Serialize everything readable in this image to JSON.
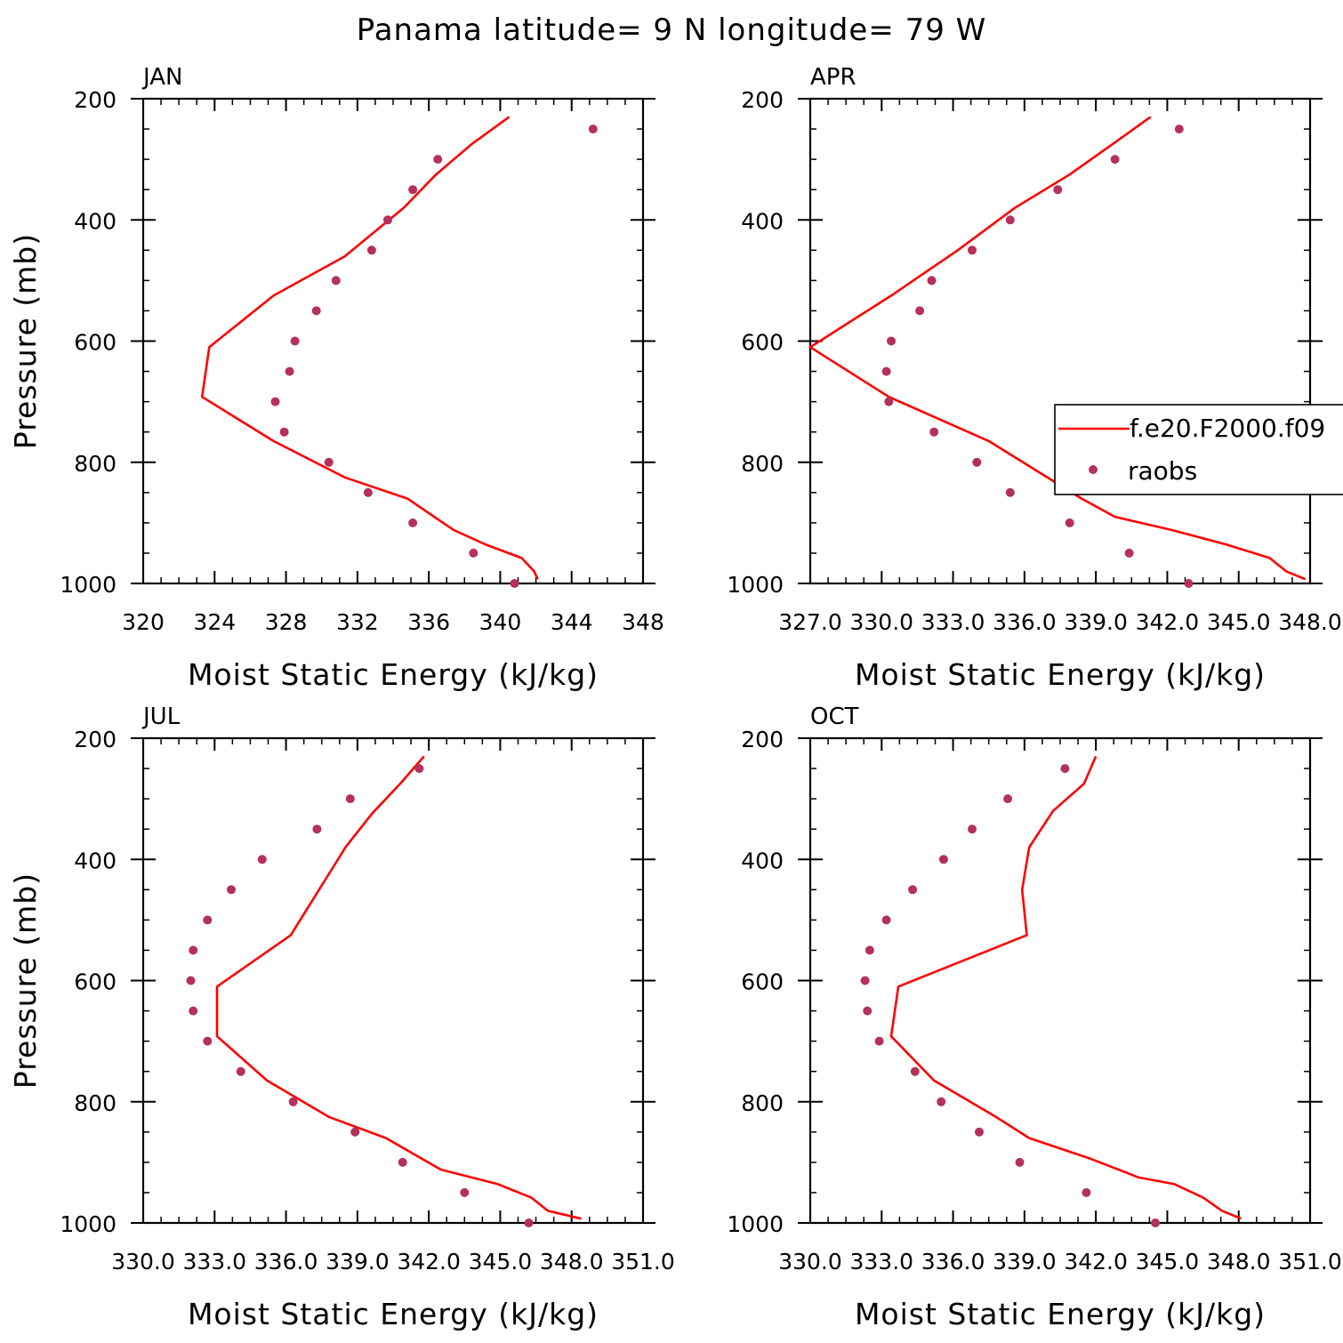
{
  "figure": {
    "title": "Panama  latitude= 9 N longitude= 79 W"
  },
  "colors": {
    "model_line": "#ff0000",
    "raobs_marker": "#b5305a",
    "axis": "#000000"
  },
  "legend": {
    "entries": [
      {
        "label": "f.e20.F2000.f09",
        "marker": "line"
      },
      {
        "label": "raobs",
        "marker": "dot"
      }
    ]
  },
  "chart_data": [
    {
      "type": "line",
      "panel": "JAN",
      "xlabel": "Moist Static Energy (kJ/kg)",
      "ylabel": "Pressure (mb)",
      "xlim": [
        320,
        348
      ],
      "ylim": [
        1000,
        200
      ],
      "x_ticks": [
        320,
        324,
        328,
        332,
        336,
        340,
        344,
        348
      ],
      "x_tick_labels": [
        "320",
        "324",
        "328",
        "332",
        "336",
        "340",
        "344",
        "348"
      ],
      "y_ticks": [
        200,
        400,
        600,
        800,
        1000
      ],
      "y_tick_labels": [
        "200",
        "400",
        "600",
        "800",
        "1000"
      ],
      "series": [
        {
          "name": "f.e20.F2000.f09",
          "style": "line",
          "points": [
            [
              340.5,
              230
            ],
            [
              338.4,
              275
            ],
            [
              336.4,
              325
            ],
            [
              334.6,
              380
            ],
            [
              331.3,
              460
            ],
            [
              327.3,
              525
            ],
            [
              323.7,
              610
            ],
            [
              323.3,
              692
            ],
            [
              327.3,
              765
            ],
            [
              331.3,
              825
            ],
            [
              334.8,
              860
            ],
            [
              336.3,
              890
            ],
            [
              337.4,
              912
            ],
            [
              339.2,
              936
            ],
            [
              341.2,
              958
            ],
            [
              341.9,
              980
            ],
            [
              342.1,
              993
            ]
          ]
        },
        {
          "name": "raobs",
          "style": "markers",
          "points": [
            [
              345.2,
              250
            ],
            [
              336.5,
              300
            ],
            [
              335.1,
              350
            ],
            [
              333.7,
              400
            ],
            [
              332.8,
              450
            ],
            [
              330.8,
              500
            ],
            [
              329.7,
              550
            ],
            [
              328.5,
              600
            ],
            [
              328.2,
              650
            ],
            [
              327.4,
              700
            ],
            [
              327.9,
              750
            ],
            [
              330.4,
              800
            ],
            [
              332.6,
              850
            ],
            [
              335.1,
              900
            ],
            [
              338.5,
              950
            ],
            [
              340.8,
              1000
            ]
          ]
        }
      ]
    },
    {
      "type": "line",
      "panel": "APR",
      "xlabel": "Moist Static Energy (kJ/kg)",
      "ylabel": "",
      "xlim": [
        327.0,
        348.0
      ],
      "ylim": [
        1000,
        200
      ],
      "x_ticks": [
        327,
        330,
        333,
        336,
        339,
        342,
        345,
        348
      ],
      "x_tick_labels": [
        "327.0",
        "330.0",
        "333.0",
        "336.0",
        "339.0",
        "342.0",
        "345.0",
        "348.0"
      ],
      "y_ticks": [
        200,
        400,
        600,
        800,
        1000
      ],
      "y_tick_labels": [
        "200",
        "400",
        "600",
        "800",
        "1000"
      ],
      "series": [
        {
          "name": "f.e20.F2000.f09",
          "style": "line",
          "points": [
            [
              341.3,
              230
            ],
            [
              339.7,
              275
            ],
            [
              337.9,
              325
            ],
            [
              335.6,
              380
            ],
            [
              333.2,
              450
            ],
            [
              330.4,
              525
            ],
            [
              327.0,
              610
            ],
            [
              330.3,
              692
            ],
            [
              334.5,
              765
            ],
            [
              338.4,
              860
            ],
            [
              339.8,
              890
            ],
            [
              342.2,
              912
            ],
            [
              344.5,
              936
            ],
            [
              346.3,
              958
            ],
            [
              347.0,
              980
            ],
            [
              347.8,
              993
            ]
          ]
        },
        {
          "name": "raobs",
          "style": "markers",
          "points": [
            [
              342.5,
              250
            ],
            [
              339.8,
              300
            ],
            [
              337.4,
              350
            ],
            [
              335.4,
              400
            ],
            [
              333.8,
              450
            ],
            [
              332.1,
              500
            ],
            [
              331.6,
              550
            ],
            [
              330.4,
              600
            ],
            [
              330.2,
              650
            ],
            [
              330.3,
              700
            ],
            [
              332.2,
              750
            ],
            [
              334.0,
              800
            ],
            [
              335.4,
              850
            ],
            [
              337.9,
              900
            ],
            [
              340.4,
              950
            ],
            [
              342.9,
              1000
            ]
          ]
        }
      ]
    },
    {
      "type": "line",
      "panel": "JUL",
      "xlabel": "Moist Static Energy (kJ/kg)",
      "ylabel": "Pressure (mb)",
      "xlim": [
        330.0,
        351.0
      ],
      "ylim": [
        1000,
        200
      ],
      "x_ticks": [
        330,
        333,
        336,
        339,
        342,
        345,
        348,
        351
      ],
      "x_tick_labels": [
        "330.0",
        "333.0",
        "336.0",
        "339.0",
        "342.0",
        "345.0",
        "348.0",
        "351.0"
      ],
      "y_ticks": [
        200,
        400,
        600,
        800,
        1000
      ],
      "y_tick_labels": [
        "200",
        "400",
        "600",
        "800",
        "1000"
      ],
      "series": [
        {
          "name": "f.e20.F2000.f09",
          "style": "line",
          "points": [
            [
              341.8,
              230
            ],
            [
              340.8,
              275
            ],
            [
              339.6,
              325
            ],
            [
              338.5,
              380
            ],
            [
              336.2,
              525
            ],
            [
              333.1,
              610
            ],
            [
              333.1,
              692
            ],
            [
              335.2,
              765
            ],
            [
              337.8,
              825
            ],
            [
              340.2,
              860
            ],
            [
              342.5,
              912
            ],
            [
              344.9,
              936
            ],
            [
              346.3,
              958
            ],
            [
              347.0,
              980
            ],
            [
              348.4,
              993
            ]
          ]
        },
        {
          "name": "raobs",
          "style": "markers",
          "points": [
            [
              341.6,
              250
            ],
            [
              338.7,
              300
            ],
            [
              337.3,
              350
            ],
            [
              335.0,
              400
            ],
            [
              333.7,
              450
            ],
            [
              332.7,
              500
            ],
            [
              332.1,
              550
            ],
            [
              332.0,
              600
            ],
            [
              332.1,
              650
            ],
            [
              332.7,
              700
            ],
            [
              334.1,
              750
            ],
            [
              336.3,
              800
            ],
            [
              338.9,
              850
            ],
            [
              340.9,
              900
            ],
            [
              343.5,
              950
            ],
            [
              346.2,
              1000
            ]
          ]
        }
      ]
    },
    {
      "type": "line",
      "panel": "OCT",
      "xlabel": "Moist Static Energy (kJ/kg)",
      "ylabel": "",
      "xlim": [
        330.0,
        351.0
      ],
      "ylim": [
        1000,
        200
      ],
      "x_ticks": [
        330,
        333,
        336,
        339,
        342,
        345,
        348,
        351
      ],
      "x_tick_labels": [
        "330.0",
        "333.0",
        "336.0",
        "339.0",
        "342.0",
        "345.0",
        "348.0",
        "351.0"
      ],
      "y_ticks": [
        200,
        400,
        600,
        800,
        1000
      ],
      "y_tick_labels": [
        "200",
        "400",
        "600",
        "800",
        "1000"
      ],
      "series": [
        {
          "name": "f.e20.F2000.f09",
          "style": "line",
          "points": [
            [
              342.0,
              230
            ],
            [
              341.5,
              275
            ],
            [
              340.2,
              320
            ],
            [
              339.2,
              380
            ],
            [
              338.9,
              450
            ],
            [
              339.1,
              525
            ],
            [
              333.7,
              610
            ],
            [
              333.4,
              692
            ],
            [
              335.2,
              765
            ],
            [
              337.8,
              825
            ],
            [
              339.2,
              860
            ],
            [
              341.7,
              893
            ],
            [
              343.8,
              925
            ],
            [
              345.3,
              936
            ],
            [
              346.5,
              958
            ],
            [
              347.3,
              980
            ],
            [
              348.1,
              993
            ]
          ]
        },
        {
          "name": "raobs",
          "style": "markers",
          "points": [
            [
              340.7,
              250
            ],
            [
              338.3,
              300
            ],
            [
              336.8,
              350
            ],
            [
              335.6,
              400
            ],
            [
              334.3,
              450
            ],
            [
              333.2,
              500
            ],
            [
              332.5,
              550
            ],
            [
              332.3,
              600
            ],
            [
              332.4,
              650
            ],
            [
              332.9,
              700
            ],
            [
              334.4,
              750
            ],
            [
              335.5,
              800
            ],
            [
              337.1,
              850
            ],
            [
              338.8,
              900
            ],
            [
              341.6,
              950
            ],
            [
              344.5,
              1000
            ]
          ]
        }
      ]
    }
  ]
}
